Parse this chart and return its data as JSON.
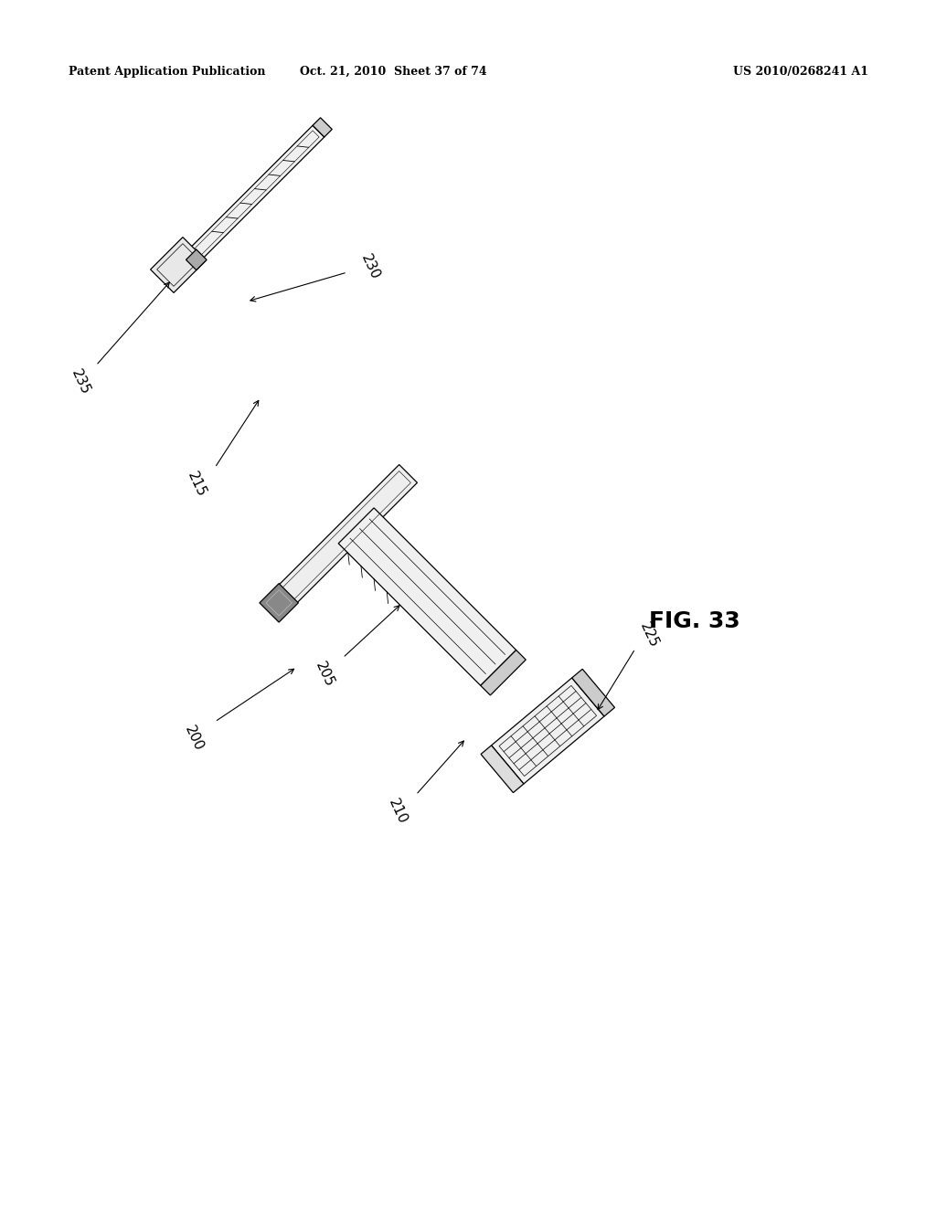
{
  "title_left": "Patent Application Publication",
  "title_center": "Oct. 21, 2010  Sheet 37 of 74",
  "title_right": "US 2010/0268241 A1",
  "fig_label": "FIG. 33",
  "background_color": "#ffffff"
}
